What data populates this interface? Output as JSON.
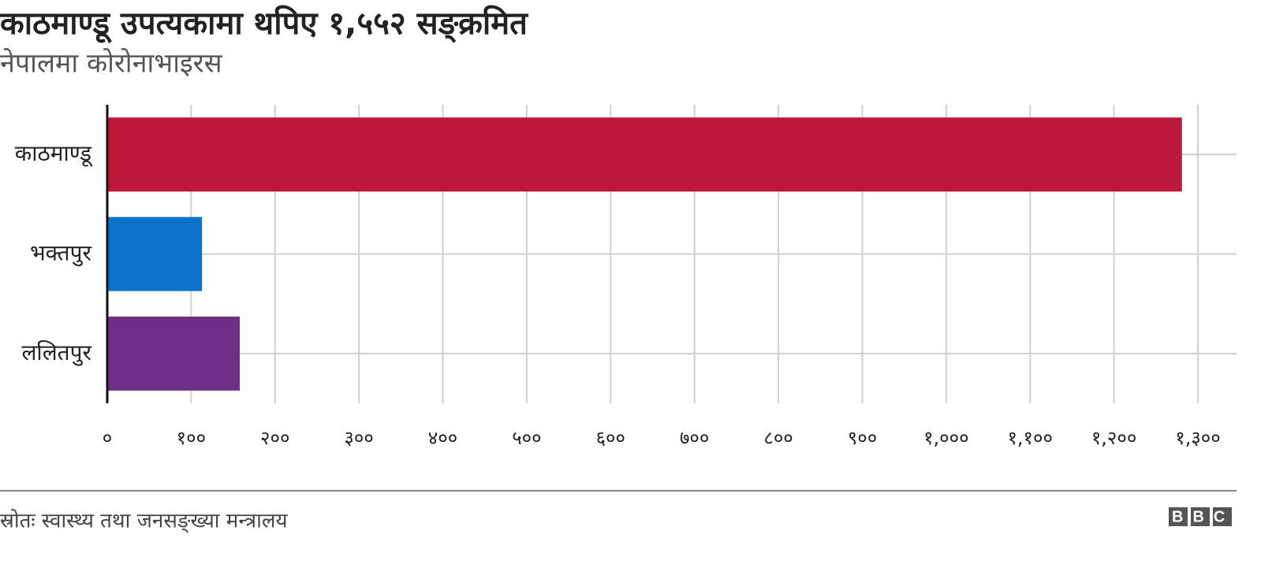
{
  "chart_data": {
    "type": "hbar",
    "title": "काठमाण्डू उपत्यकामा थपिए १,५५२ सङ्क्रमित",
    "subtitle": "नेपालमा कोरोनाभाइरस",
    "categories": [
      "काठमाण्डू",
      "भक्तपुर",
      "ललितपुर"
    ],
    "values": [
      1281,
      113,
      158
    ],
    "colors": [
      "#bd173c",
      "#0b74c9",
      "#6e2f87"
    ],
    "xlim": [
      0,
      1300
    ],
    "xticks": [
      {
        "value": 0,
        "label": "०"
      },
      {
        "value": 100,
        "label": "१००"
      },
      {
        "value": 200,
        "label": "२००"
      },
      {
        "value": 300,
        "label": "३००"
      },
      {
        "value": 400,
        "label": "४००"
      },
      {
        "value": 500,
        "label": "५००"
      },
      {
        "value": 600,
        "label": "६००"
      },
      {
        "value": 700,
        "label": "७००"
      },
      {
        "value": 800,
        "label": "८००"
      },
      {
        "value": 900,
        "label": "९००"
      },
      {
        "value": 1000,
        "label": "१,०००"
      },
      {
        "value": 1100,
        "label": "१,१००"
      },
      {
        "value": 1200,
        "label": "१,२००"
      },
      {
        "value": 1300,
        "label": "१,३००"
      }
    ],
    "grid": true,
    "source": "स्रोतः स्वास्थ्य तथा जनसङ्ख्या मन्त्रालय",
    "logo": "BBC"
  }
}
